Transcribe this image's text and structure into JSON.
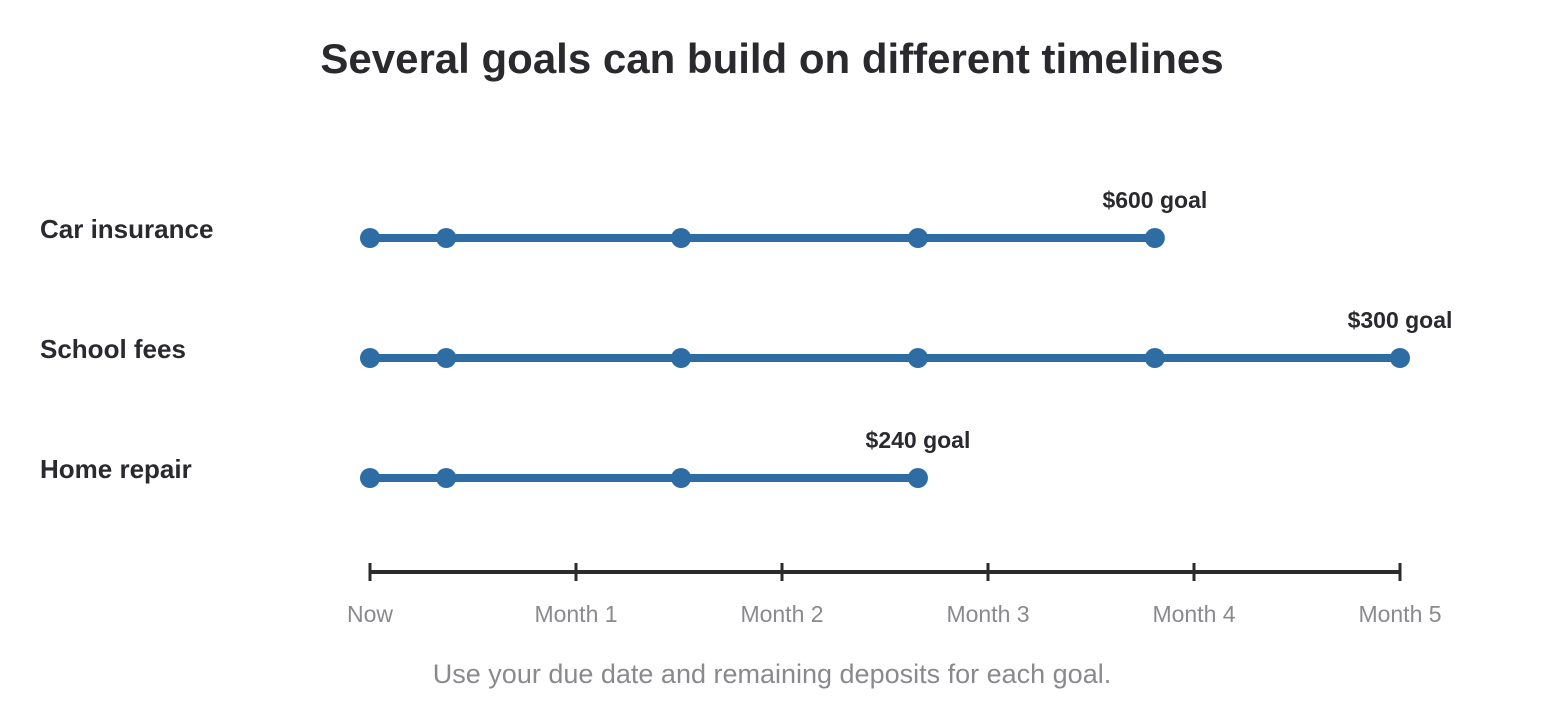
{
  "chart_data": {
    "type": "timeline",
    "title": "Several goals can build on different timelines",
    "series": [
      {
        "name": "Car insurance",
        "values": [
          0,
          0.37,
          1.51,
          2.66,
          3.81
        ],
        "annotation": "$600 goal"
      },
      {
        "name": "School fees",
        "values": [
          0,
          0.37,
          1.51,
          2.66,
          3.81,
          5
        ],
        "annotation": "$300 goal"
      },
      {
        "name": "Home repair",
        "values": [
          0,
          0.37,
          1.51,
          2.66
        ],
        "annotation": "$240 goal"
      }
    ],
    "color": "#2e6da4",
    "xlim": [
      0,
      5
    ],
    "xticks": [
      {
        "value": 0,
        "label": "Now"
      },
      {
        "value": 1,
        "label": "Month 1"
      },
      {
        "value": 2,
        "label": "Month 2"
      },
      {
        "value": 3,
        "label": "Month 3"
      },
      {
        "value": 4,
        "label": "Month 4"
      },
      {
        "value": 5,
        "label": "Month 5"
      }
    ],
    "footnote": "Use your due date and remaining deposits for each goal."
  }
}
